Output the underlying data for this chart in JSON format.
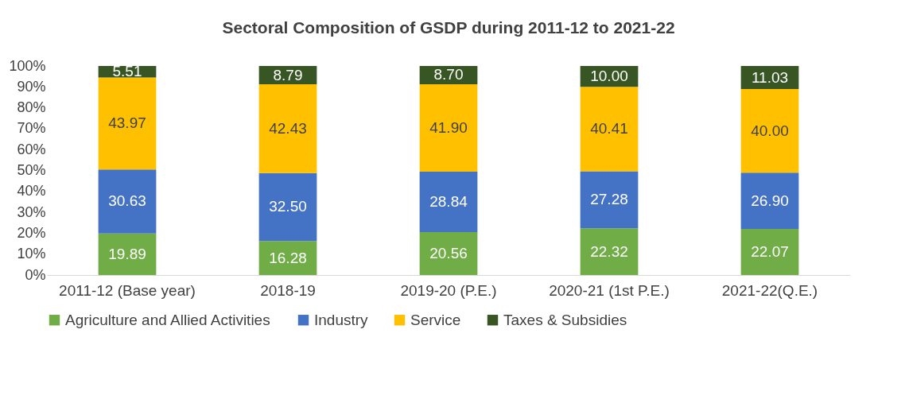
{
  "chart_data": {
    "type": "bar",
    "title": "Sectoral Composition of GSDP during 2011-12 to 2021-22",
    "stacked": true,
    "categories": [
      "2011-12 (Base year)",
      "2018-19",
      "2019-20 (P.E.)",
      "2020-21 (1st P.E.)",
      "2021-22(Q.E.)"
    ],
    "series": [
      {
        "name": "Agriculture and Allied Activities",
        "color": "#70ad47",
        "values": [
          19.89,
          16.28,
          20.56,
          22.32,
          22.07
        ],
        "value_labels": [
          "19.89",
          "16.28",
          "20.56",
          "22.32",
          "22.07"
        ]
      },
      {
        "name": "Industry",
        "color": "#4472c4",
        "values": [
          30.63,
          32.5,
          28.84,
          27.28,
          26.9
        ],
        "value_labels": [
          "30.63",
          "32.50",
          "28.84",
          "27.28",
          "26.90"
        ]
      },
      {
        "name": "Service",
        "color": "#ffc000",
        "values": [
          43.97,
          42.43,
          41.9,
          40.41,
          40.0
        ],
        "value_labels": [
          "43.97",
          "42.43",
          "41.90",
          "40.41",
          "40.00"
        ]
      },
      {
        "name": "Taxes & Subsidies",
        "color": "#375623",
        "values": [
          5.51,
          8.79,
          8.7,
          10.0,
          11.03
        ],
        "value_labels": [
          "5.51",
          "8.79",
          "8.70",
          "10.00",
          "11.03"
        ]
      }
    ],
    "ylim": [
      0,
      100
    ],
    "yticks": [
      {
        "value": 0,
        "label": "0%"
      },
      {
        "value": 10,
        "label": "10%"
      },
      {
        "value": 20,
        "label": "20%"
      },
      {
        "value": 30,
        "label": "30%"
      },
      {
        "value": 40,
        "label": "40%"
      },
      {
        "value": 50,
        "label": "50%"
      },
      {
        "value": 60,
        "label": "60%"
      },
      {
        "value": 70,
        "label": "70%"
      },
      {
        "value": 80,
        "label": "80%"
      },
      {
        "value": 90,
        "label": "90%"
      },
      {
        "value": 100,
        "label": "100%"
      }
    ],
    "grid": false,
    "legend": "bottom"
  }
}
